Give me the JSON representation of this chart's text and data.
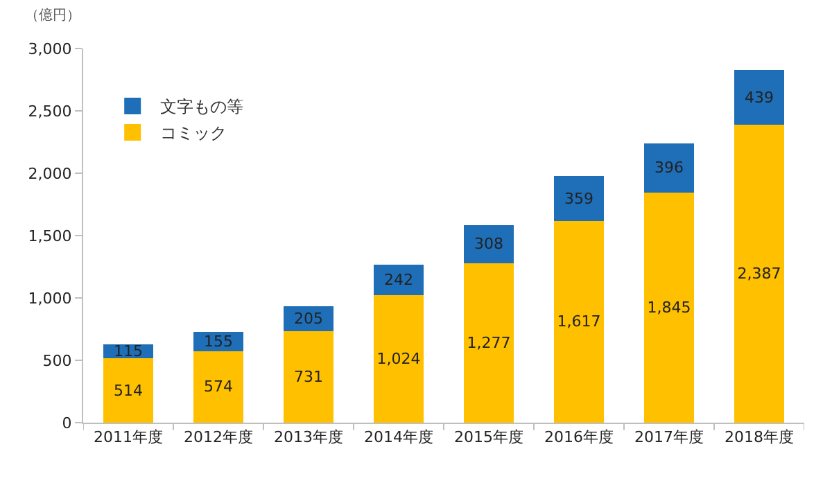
{
  "chart_data": {
    "type": "bar",
    "stacked": true,
    "ylabel": "（億円）",
    "categories": [
      "2011年度",
      "2012年度",
      "2013年度",
      "2014年度",
      "2015年度",
      "2016年度",
      "2017年度",
      "2018年度"
    ],
    "series": [
      {
        "name": "コミック",
        "color": "#ffc000",
        "values": [
          514,
          574,
          731,
          1024,
          1277,
          1617,
          1845,
          2387
        ],
        "value_labels": [
          "514",
          "574",
          "731",
          "1,024",
          "1,277",
          "1,617",
          "1,845",
          "2,387"
        ]
      },
      {
        "name": "文字もの等",
        "color": "#1f6fb8",
        "values": [
          115,
          155,
          205,
          242,
          308,
          359,
          396,
          439
        ],
        "value_labels": [
          "115",
          "155",
          "205",
          "242",
          "308",
          "359",
          "396",
          "439"
        ]
      }
    ],
    "ylim": [
      0,
      3000
    ],
    "yticks": [
      0,
      500,
      {
        "value": 1000,
        "label": "1,000"
      },
      {
        "value": 1500,
        "label": "1,500"
      },
      {
        "value": 2000,
        "label": "2,000"
      },
      {
        "value": 2500,
        "label": "2,500"
      },
      {
        "value": 3000,
        "label": "3,000"
      }
    ],
    "grid": false,
    "legend": "top left"
  }
}
